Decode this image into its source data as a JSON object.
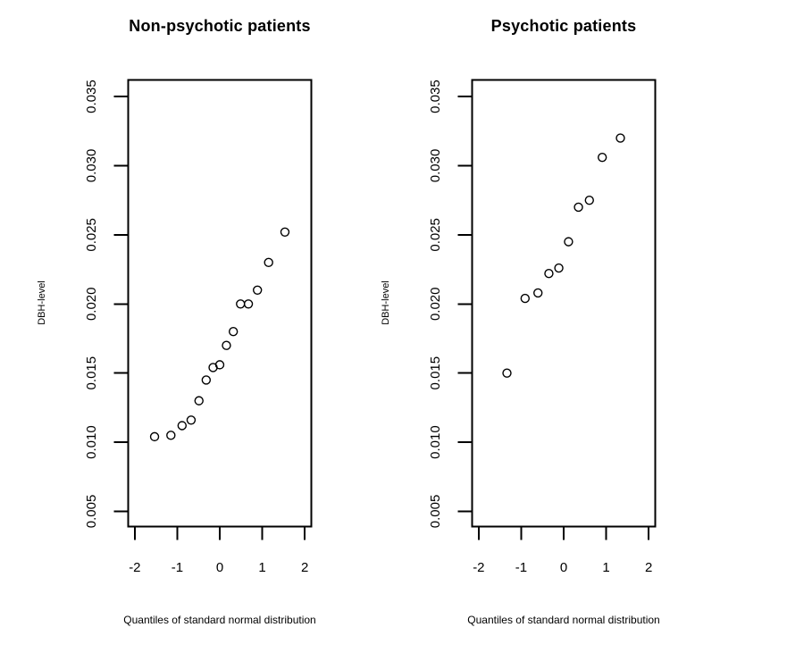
{
  "figure": {
    "background": "#ffffff",
    "line_color": "#000000",
    "marker": "open-circle"
  },
  "chart_data": [
    {
      "type": "scatter",
      "title": "Non-psychotic patients",
      "xlabel": "Quantiles of standard normal distribution",
      "ylabel": "DBH-level",
      "x": [
        -1.534,
        -1.15,
        -0.887,
        -0.674,
        -0.489,
        -0.319,
        -0.157,
        0,
        0.157,
        0.319,
        0.489,
        0.674,
        0.887,
        1.15,
        1.534
      ],
      "y": [
        0.0104,
        0.0105,
        0.0112,
        0.0116,
        0.013,
        0.0145,
        0.0154,
        0.0156,
        0.017,
        0.018,
        0.02,
        0.02,
        0.021,
        0.023,
        0.0252
      ],
      "xticks": [
        -2,
        -1,
        0,
        1,
        2
      ],
      "yticks": [
        0.005,
        0.01,
        0.015,
        0.02,
        0.025,
        0.03,
        0.035
      ],
      "ytick_labels": [
        "0.005",
        "0.010",
        "0.015",
        "0.020",
        "0.025",
        "0.030",
        "0.035"
      ],
      "xlim": [
        -2.155,
        2.155
      ],
      "ylim": [
        0.0039,
        0.0362
      ],
      "grid": false,
      "legend": "none"
    },
    {
      "type": "scatter",
      "title": "Psychotic patients",
      "xlabel": "Quantiles of standard normal distribution",
      "ylabel": "DBH-level",
      "x": [
        -1.335,
        -0.908,
        -0.605,
        -0.348,
        -0.114,
        0.114,
        0.348,
        0.605,
        0.908,
        1.335
      ],
      "y": [
        0.015,
        0.0204,
        0.0208,
        0.0222,
        0.0226,
        0.0245,
        0.027,
        0.0275,
        0.0306,
        0.032
      ],
      "xticks": [
        -2,
        -1,
        0,
        1,
        2
      ],
      "yticks": [
        0.005,
        0.01,
        0.015,
        0.02,
        0.025,
        0.03,
        0.035
      ],
      "ytick_labels": [
        "0.005",
        "0.010",
        "0.015",
        "0.020",
        "0.025",
        "0.030",
        "0.035"
      ],
      "xlim": [
        -2.155,
        2.155
      ],
      "ylim": [
        0.0039,
        0.0362
      ],
      "grid": false,
      "legend": "none"
    }
  ]
}
